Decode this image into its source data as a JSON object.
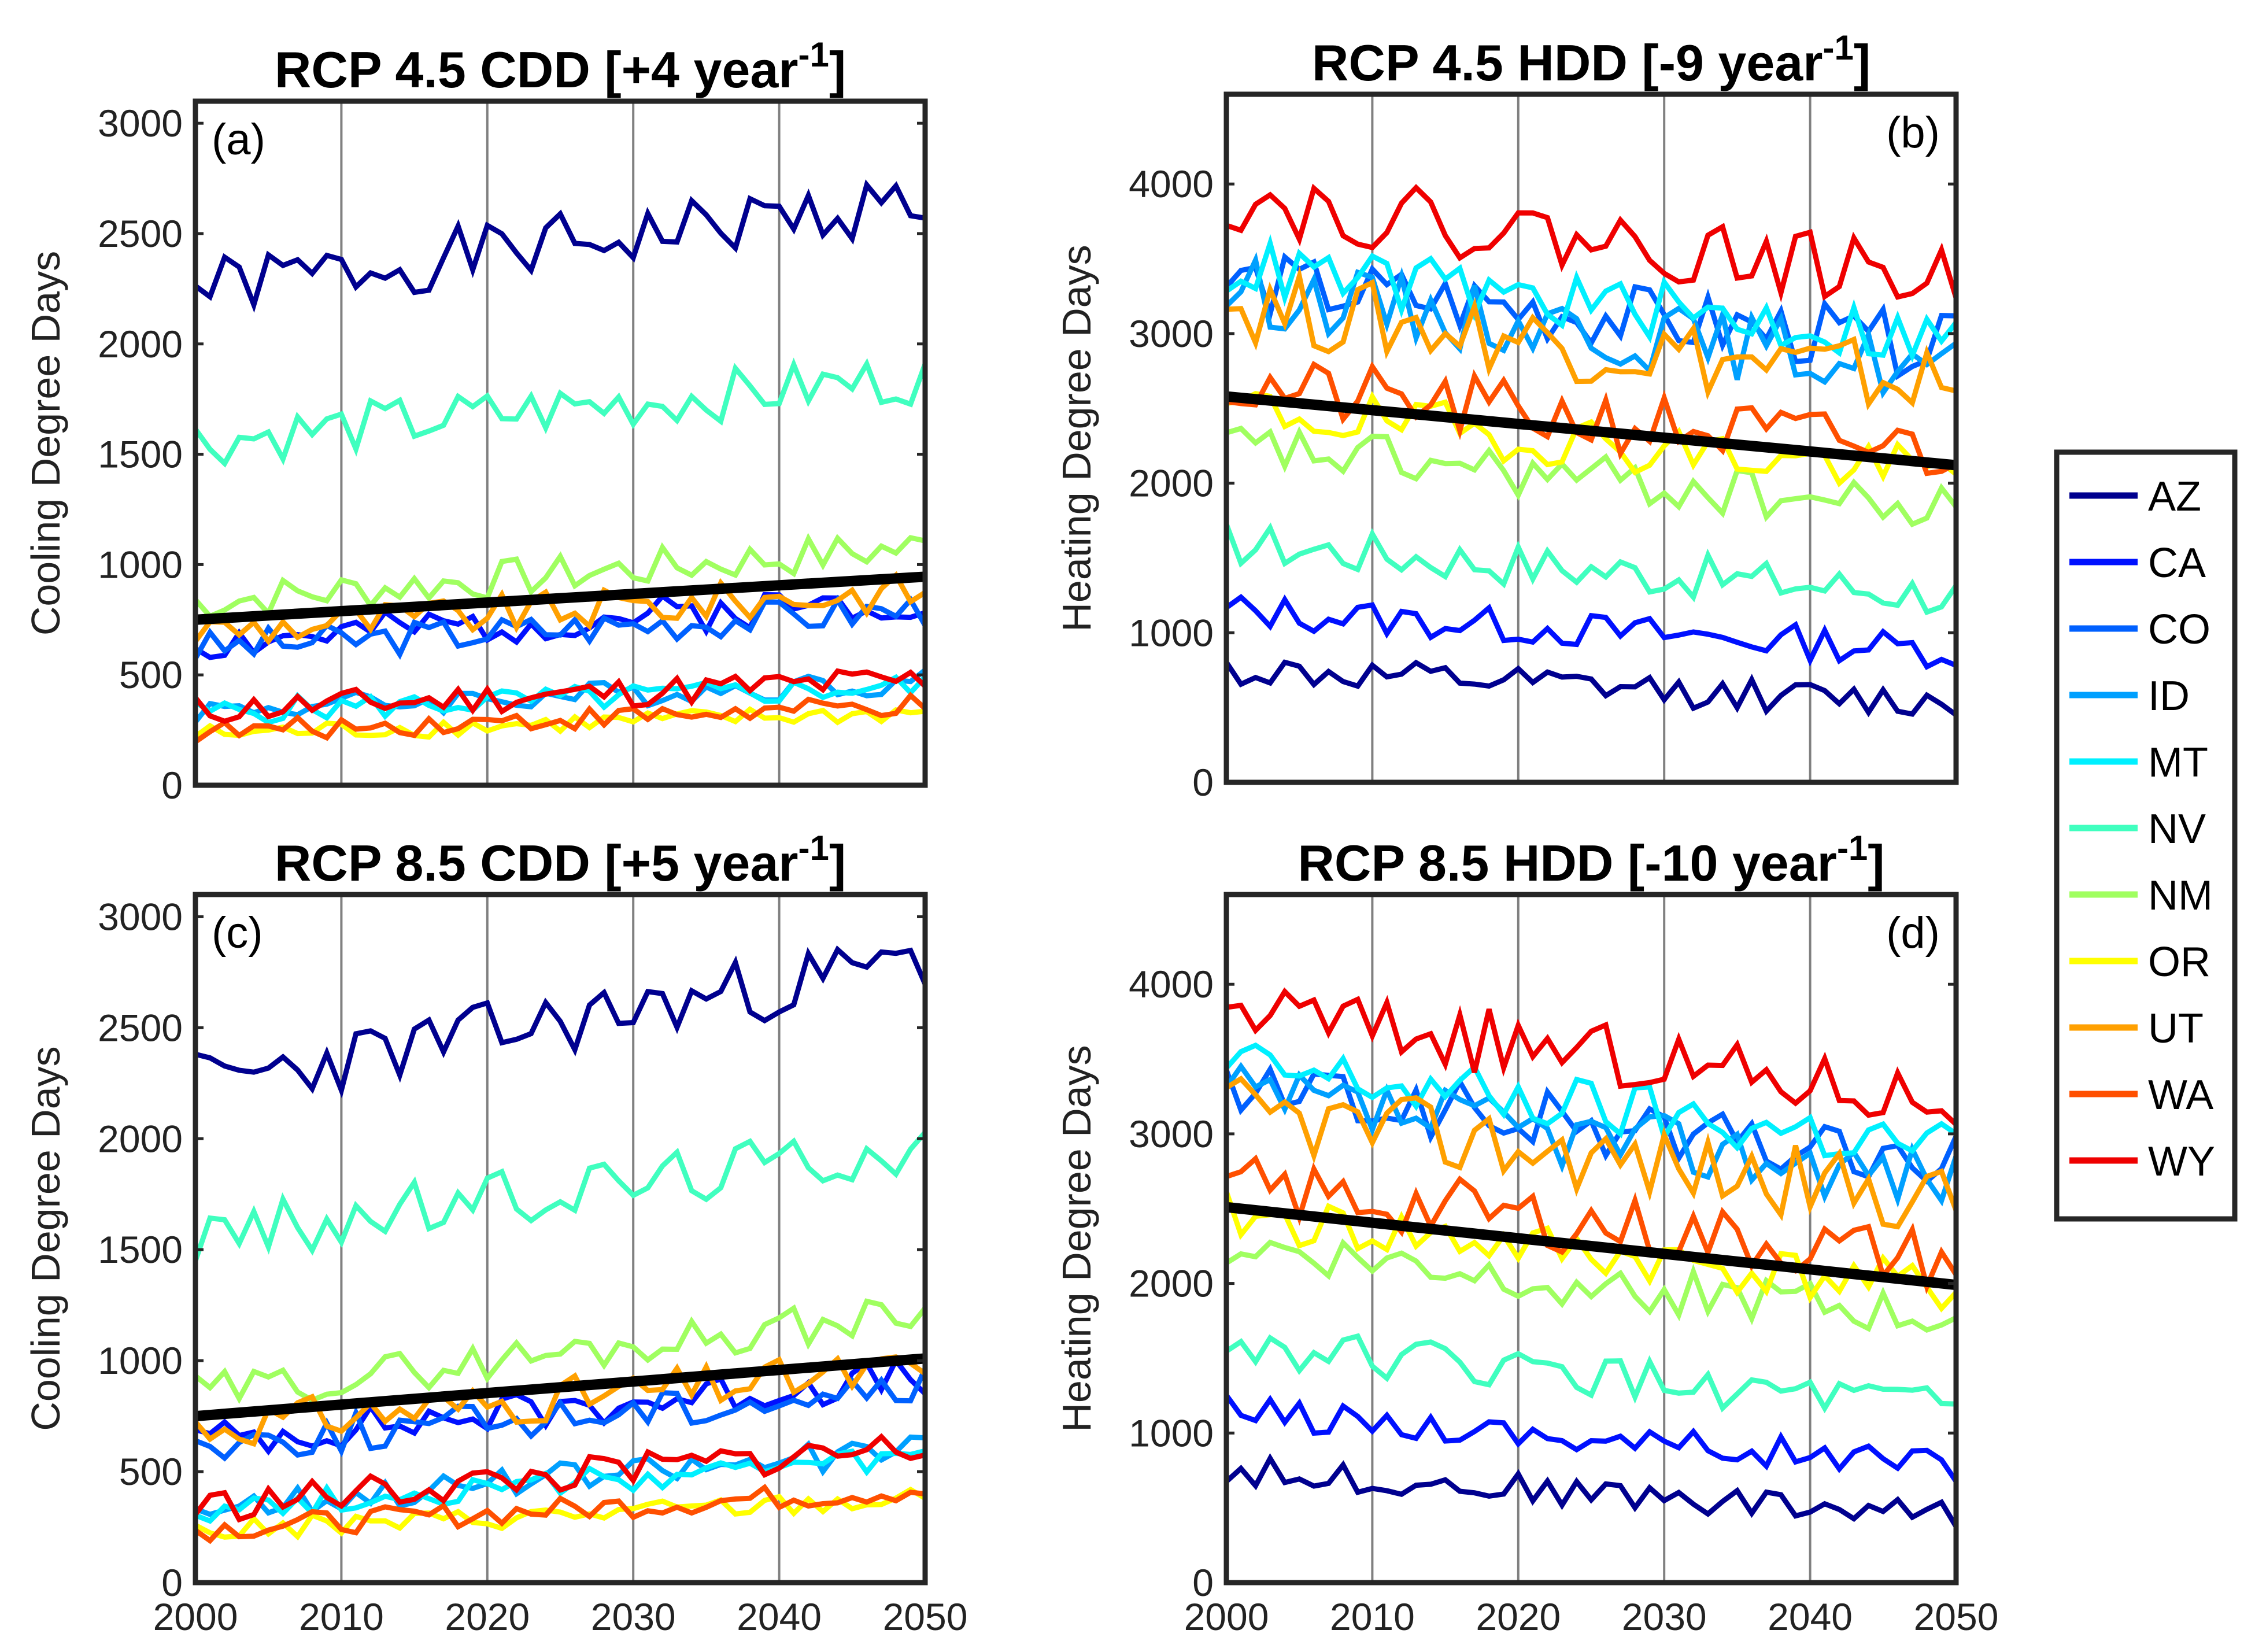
{
  "chart_data": [
    {
      "type": "line",
      "id": "a",
      "title": "RCP 4.5 CDD [+4 year",
      "title_exp": "-1",
      "title_end": "]",
      "panel_label": "(a)",
      "ylabel": "Cooling Degree Days",
      "xlabel": "",
      "xlim": [
        2000,
        2050
      ],
      "ylim": [
        0,
        3100
      ],
      "yticks": [
        "0",
        "500",
        "1000",
        "1500",
        "2000",
        "2500",
        "3000"
      ],
      "xticks": [
        "2000",
        "2010",
        "2020",
        "2030",
        "2040",
        "2050"
      ],
      "show_xticks": false,
      "trend": [
        [
          2000,
          750
        ],
        [
          2050,
          945
        ]
      ],
      "trend_per_year": 4,
      "series": [
        {
          "name": "AZ",
          "base": [
            2250,
            2650
          ],
          "amp": 140,
          "seed": 1
        },
        {
          "name": "CA",
          "base": [
            640,
            850
          ],
          "amp": 90,
          "seed": 2
        },
        {
          "name": "CO",
          "base": [
            620,
            800
          ],
          "amp": 80,
          "seed": 3
        },
        {
          "name": "ID",
          "base": [
            340,
            470
          ],
          "amp": 60,
          "seed": 4
        },
        {
          "name": "MT",
          "base": [
            330,
            450
          ],
          "amp": 60,
          "seed": 5
        },
        {
          "name": "NV",
          "base": [
            1560,
            1850
          ],
          "amp": 120,
          "seed": 6
        },
        {
          "name": "NM",
          "base": [
            830,
            1080
          ],
          "amp": 90,
          "seed": 7
        },
        {
          "name": "OR",
          "base": [
            230,
            330
          ],
          "amp": 45,
          "seed": 8
        },
        {
          "name": "UT",
          "base": [
            700,
            880
          ],
          "amp": 90,
          "seed": 9
        },
        {
          "name": "WA",
          "base": [
            240,
            360
          ],
          "amp": 50,
          "seed": 10
        },
        {
          "name": "WY",
          "base": [
            340,
            480
          ],
          "amp": 70,
          "seed": 11
        }
      ]
    },
    {
      "type": "line",
      "id": "b",
      "title": "RCP 4.5 HDD [-9 year",
      "title_exp": "-1",
      "title_end": "]",
      "panel_label": "(b)",
      "ylabel": "Heating Degree Days",
      "xlabel": "",
      "xlim": [
        2000,
        2050
      ],
      "ylim": [
        0,
        4600
      ],
      "yticks": [
        "0",
        "1000",
        "2000",
        "3000",
        "4000"
      ],
      "xticks": [
        "2000",
        "2010",
        "2020",
        "2030",
        "2040",
        "2050"
      ],
      "show_xticks": false,
      "trend": [
        [
          2000,
          2580
        ],
        [
          2050,
          2120
        ]
      ],
      "trend_per_year": -9,
      "series": [
        {
          "name": "AZ",
          "base": [
            750,
            520
          ],
          "amp": 110,
          "seed": 12
        },
        {
          "name": "CA",
          "base": [
            1150,
            880
          ],
          "amp": 120,
          "seed": 13
        },
        {
          "name": "CO",
          "base": [
            3350,
            2900
          ],
          "amp": 220,
          "seed": 14
        },
        {
          "name": "ID",
          "base": [
            3300,
            2750
          ],
          "amp": 230,
          "seed": 15
        },
        {
          "name": "MT",
          "base": [
            3450,
            2950
          ],
          "amp": 200,
          "seed": 16
        },
        {
          "name": "NV",
          "base": [
            1600,
            1250
          ],
          "amp": 150,
          "seed": 17
        },
        {
          "name": "NM",
          "base": [
            2250,
            1800
          ],
          "amp": 170,
          "seed": 18
        },
        {
          "name": "OR",
          "base": [
            2500,
            2050
          ],
          "amp": 180,
          "seed": 19
        },
        {
          "name": "UT",
          "base": [
            3200,
            2650
          ],
          "amp": 260,
          "seed": 20
        },
        {
          "name": "WA",
          "base": [
            2650,
            2200
          ],
          "amp": 220,
          "seed": 21
        },
        {
          "name": "WY",
          "base": [
            3900,
            3350
          ],
          "amp": 220,
          "seed": 22
        }
      ]
    },
    {
      "type": "line",
      "id": "c",
      "title": "RCP 8.5 CDD [+5 year",
      "title_exp": "-1",
      "title_end": "]",
      "panel_label": "(c)",
      "ylabel": "Cooling Degree Days",
      "xlabel": "",
      "xlim": [
        2000,
        2050
      ],
      "ylim": [
        0,
        3100
      ],
      "yticks": [
        "0",
        "500",
        "1000",
        "1500",
        "2000",
        "2500",
        "3000"
      ],
      "xticks": [
        "2000",
        "2010",
        "2020",
        "2030",
        "2040",
        "2050"
      ],
      "show_xticks": true,
      "trend": [
        [
          2000,
          750
        ],
        [
          2050,
          1010
        ]
      ],
      "trend_per_year": 5,
      "series": [
        {
          "name": "AZ",
          "base": [
            2250,
            2800
          ],
          "amp": 150,
          "seed": 23
        },
        {
          "name": "CA",
          "base": [
            640,
            930
          ],
          "amp": 90,
          "seed": 24
        },
        {
          "name": "CO",
          "base": [
            620,
            880
          ],
          "amp": 90,
          "seed": 25
        },
        {
          "name": "ID",
          "base": [
            340,
            600
          ],
          "amp": 70,
          "seed": 26
        },
        {
          "name": "MT",
          "base": [
            330,
            560
          ],
          "amp": 60,
          "seed": 27
        },
        {
          "name": "NV",
          "base": [
            1550,
            1980
          ],
          "amp": 130,
          "seed": 28
        },
        {
          "name": "NM",
          "base": [
            850,
            1220
          ],
          "amp": 90,
          "seed": 29
        },
        {
          "name": "OR",
          "base": [
            230,
            380
          ],
          "amp": 50,
          "seed": 30
        },
        {
          "name": "UT",
          "base": [
            700,
            960
          ],
          "amp": 100,
          "seed": 31
        },
        {
          "name": "WA",
          "base": [
            240,
            420
          ],
          "amp": 55,
          "seed": 32
        },
        {
          "name": "WY",
          "base": [
            340,
            620
          ],
          "amp": 80,
          "seed": 33
        }
      ]
    },
    {
      "type": "line",
      "id": "d",
      "title": "RCP 8.5 HDD [-10 year",
      "title_exp": "-1",
      "title_end": "]",
      "panel_label": "(d)",
      "ylabel": "Heating Degree Days",
      "xlabel": "",
      "xlim": [
        2000,
        2050
      ],
      "ylim": [
        0,
        4600
      ],
      "yticks": [
        "0",
        "1000",
        "2000",
        "3000",
        "4000"
      ],
      "xticks": [
        "2000",
        "2010",
        "2020",
        "2030",
        "2040",
        "2050"
      ],
      "show_xticks": true,
      "trend": [
        [
          2000,
          2510
        ],
        [
          2050,
          1990
        ]
      ],
      "trend_per_year": -10,
      "series": [
        {
          "name": "AZ",
          "base": [
            750,
            450
          ],
          "amp": 100,
          "seed": 34
        },
        {
          "name": "CA",
          "base": [
            1150,
            780
          ],
          "amp": 110,
          "seed": 35
        },
        {
          "name": "CO",
          "base": [
            3300,
            2800
          ],
          "amp": 210,
          "seed": 36
        },
        {
          "name": "ID",
          "base": [
            3250,
            2700
          ],
          "amp": 220,
          "seed": 37
        },
        {
          "name": "MT",
          "base": [
            3450,
            2900
          ],
          "amp": 200,
          "seed": 38
        },
        {
          "name": "NV",
          "base": [
            1600,
            1150
          ],
          "amp": 140,
          "seed": 39
        },
        {
          "name": "NM",
          "base": [
            2250,
            1750
          ],
          "amp": 160,
          "seed": 40
        },
        {
          "name": "OR",
          "base": [
            2450,
            1950
          ],
          "amp": 170,
          "seed": 41
        },
        {
          "name": "UT",
          "base": [
            3150,
            2550
          ],
          "amp": 250,
          "seed": 42
        },
        {
          "name": "WA",
          "base": [
            2650,
            2150
          ],
          "amp": 210,
          "seed": 43
        },
        {
          "name": "WY",
          "base": [
            3850,
            3200
          ],
          "amp": 220,
          "seed": 44
        }
      ]
    }
  ],
  "legend": {
    "placement": "right",
    "entries": [
      {
        "name": "AZ",
        "color": "#00008f"
      },
      {
        "name": "CA",
        "color": "#0010ff"
      },
      {
        "name": "CO",
        "color": "#0060ff"
      },
      {
        "name": "ID",
        "color": "#00a0ff"
      },
      {
        "name": "MT",
        "color": "#00f0ff"
      },
      {
        "name": "NV",
        "color": "#40ffbf"
      },
      {
        "name": "NM",
        "color": "#a0ff60"
      },
      {
        "name": "OR",
        "color": "#ffff00"
      },
      {
        "name": "UT",
        "color": "#ffa000"
      },
      {
        "name": "WA",
        "color": "#ff5000"
      },
      {
        "name": "WY",
        "color": "#ef0000"
      }
    ]
  },
  "colors": {
    "trend": "#000000",
    "axis": "#262626",
    "vgrid": "#808080"
  }
}
